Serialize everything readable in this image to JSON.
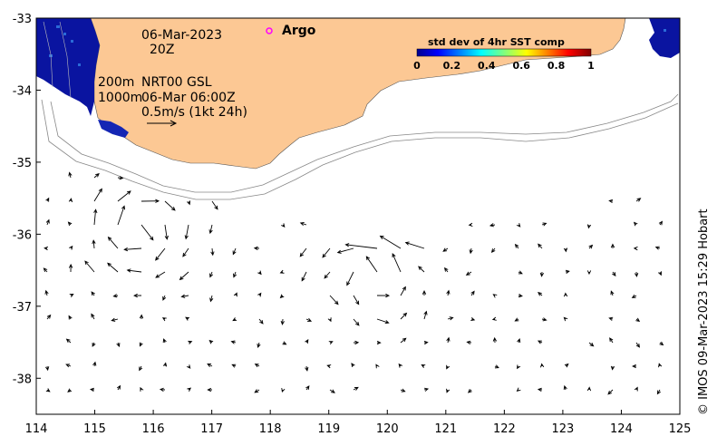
{
  "map": {
    "date": "06-Mar-2023",
    "hour": "20Z",
    "legend_argo": "Argo",
    "depth_200": "200m",
    "depth_1000": "1000m",
    "product": "NRT00 GSL",
    "product_time": "06-Mar 06:00Z",
    "scale_label": "0.5m/s (1kt 24h)",
    "credit": "© IMOS 09-Mar-2023 15:29 Hobart",
    "argo_color": "#ff00ff",
    "land_color": "#fcc894",
    "sea_color": "#ffffff"
  },
  "colorbar": {
    "title": "std dev of 4hr SST comp",
    "tick_labels": [
      "0",
      "0.2",
      "0.4",
      "0.6",
      "0.8",
      "1"
    ]
  },
  "axes": {
    "x_ticks": [
      "114",
      "115",
      "116",
      "117",
      "118",
      "119",
      "120",
      "121",
      "122",
      "123",
      "124",
      "125"
    ],
    "y_ticks": [
      "-33",
      "-34",
      "-35",
      "-36",
      "-37",
      "-38"
    ],
    "xlim": [
      114,
      125
    ],
    "ylim": [
      -38.5,
      -33
    ]
  }
}
